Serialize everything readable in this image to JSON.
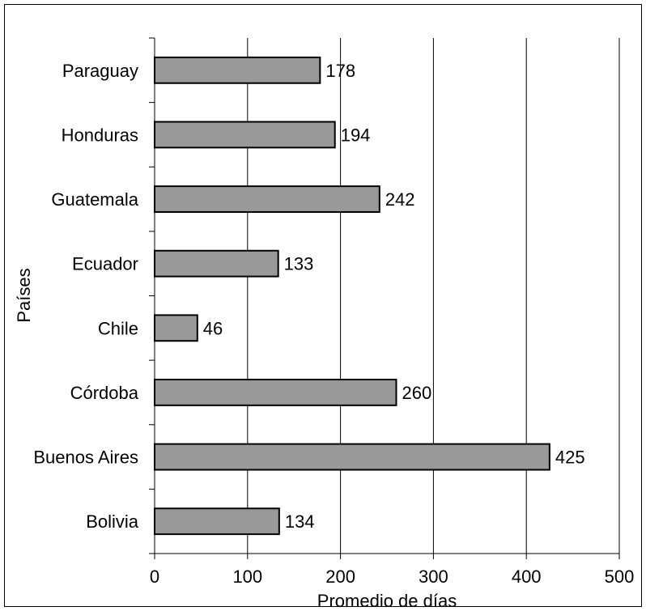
{
  "chart_data": {
    "type": "bar",
    "orientation": "horizontal",
    "categories": [
      "Paraguay",
      "Honduras",
      "Guatemala",
      "Ecuador",
      "Chile",
      "Córdoba",
      "Buenos Aires",
      "Bolivia"
    ],
    "values": [
      178,
      194,
      242,
      133,
      46,
      260,
      425,
      134
    ],
    "data_labels": [
      "178",
      "194",
      "242",
      "133",
      "46",
      "260",
      "425",
      "134"
    ],
    "title": "",
    "xlabel": "Promedio de días",
    "ylabel": "Países",
    "xlim": [
      0,
      500
    ],
    "xticks": [
      0,
      100,
      200,
      300,
      400,
      500
    ],
    "xtick_labels": [
      "0",
      "100",
      "200",
      "300",
      "400",
      "500"
    ],
    "grid": "vertical",
    "legend": "none",
    "colors": {
      "bar_fill": "#999999",
      "bar_stroke": "#000000",
      "grid": "#000000",
      "frame": "#000000",
      "background": "#ffffff"
    }
  }
}
